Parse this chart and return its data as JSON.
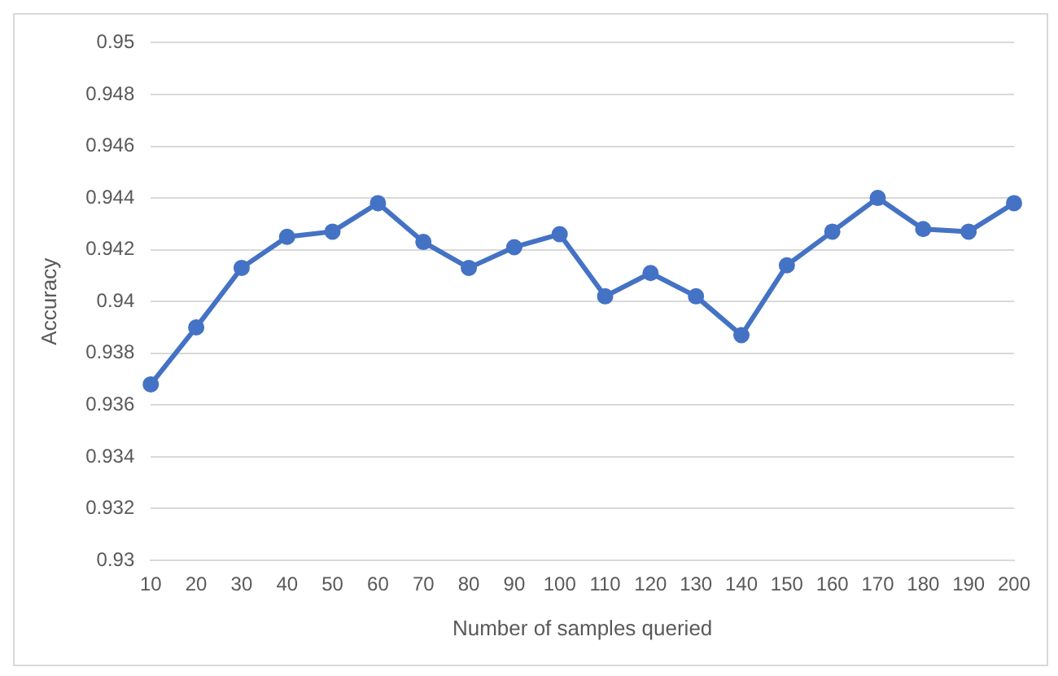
{
  "chart_data": {
    "type": "line",
    "xlabel": "Number of samples queried",
    "ylabel": "Accuracy",
    "categories": [
      "10",
      "20",
      "30",
      "40",
      "50",
      "60",
      "70",
      "80",
      "90",
      "100",
      "110",
      "120",
      "130",
      "140",
      "150",
      "160",
      "170",
      "180",
      "190",
      "200"
    ],
    "series": [
      {
        "color": "#4472c4",
        "values": [
          0.9368,
          0.939,
          0.9413,
          0.9425,
          0.9427,
          0.9438,
          0.9423,
          0.9413,
          0.9421,
          0.9426,
          0.9402,
          0.9411,
          0.9402,
          0.9387,
          0.9414,
          0.9427,
          0.944,
          0.9428,
          0.9427,
          0.9438
        ]
      }
    ],
    "ylim": [
      0.93,
      0.95
    ],
    "yticks": [
      0.93,
      0.932,
      0.934,
      0.936,
      0.938,
      0.94,
      0.942,
      0.944,
      0.946,
      0.948,
      0.95
    ],
    "grid": "y",
    "legend": false,
    "marker": "circle",
    "line_style": "solid"
  }
}
